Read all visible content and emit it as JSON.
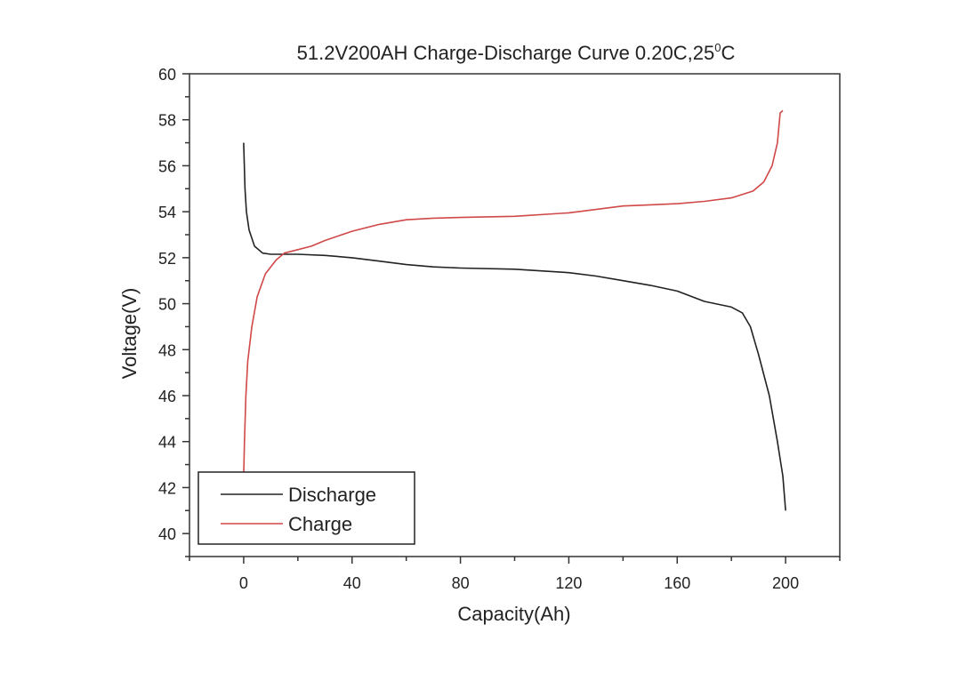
{
  "chart_data": {
    "type": "line",
    "title": "51.2V200AH Charge-Discharge Curve  0.20C,25",
    "title_sup": "0",
    "title_end": "C",
    "xlabel": "Capacity(Ah)",
    "ylabel": "Voltage(V)",
    "xlim": [
      -20,
      220
    ],
    "ylim": [
      39,
      60
    ],
    "xticks": [
      0,
      40,
      80,
      120,
      160,
      200
    ],
    "yticks": [
      40,
      42,
      44,
      46,
      48,
      50,
      52,
      54,
      56,
      58,
      60
    ],
    "grid": false,
    "legend_position": "bottom-left",
    "series": [
      {
        "name": "Discharge",
        "color": "#222222",
        "x": [
          0,
          0.5,
          1,
          2,
          4,
          7,
          10,
          20,
          30,
          40,
          50,
          60,
          70,
          80,
          100,
          120,
          130,
          140,
          150,
          160,
          170,
          180,
          184,
          187,
          190,
          194,
          197,
          199,
          200
        ],
        "y": [
          57,
          55,
          54,
          53.2,
          52.5,
          52.2,
          52.15,
          52.15,
          52.1,
          52.0,
          51.85,
          51.7,
          51.6,
          51.55,
          51.5,
          51.35,
          51.2,
          51.0,
          50.8,
          50.55,
          50.1,
          49.85,
          49.6,
          49.0,
          47.8,
          46,
          44,
          42.5,
          41
        ]
      },
      {
        "name": "Charge",
        "color": "#d04848",
        "x": [
          0,
          0.3,
          0.8,
          1.5,
          3,
          5,
          8,
          12,
          15,
          20,
          25,
          30,
          40,
          50,
          60,
          70,
          80,
          100,
          120,
          130,
          140,
          150,
          160,
          170,
          180,
          188,
          192,
          195,
          197,
          198,
          199
        ],
        "y": [
          42.5,
          44,
          46,
          47.5,
          49,
          50.3,
          51.3,
          51.9,
          52.2,
          52.35,
          52.5,
          52.75,
          53.15,
          53.45,
          53.65,
          53.72,
          53.75,
          53.8,
          53.95,
          54.1,
          54.25,
          54.3,
          54.35,
          54.45,
          54.6,
          54.9,
          55.3,
          56,
          57,
          58.3,
          58.4
        ]
      }
    ]
  }
}
